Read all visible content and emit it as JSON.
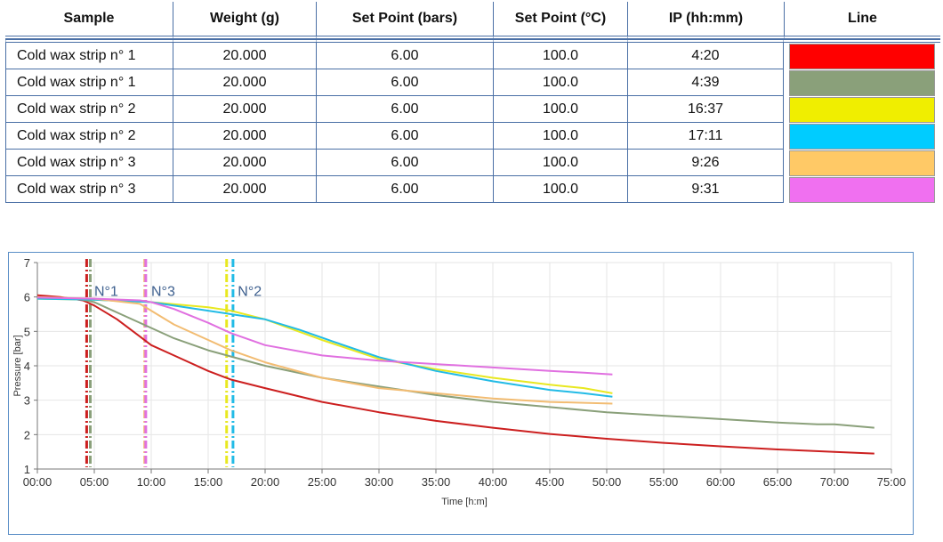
{
  "table": {
    "headers": [
      "Sample",
      "Weight (g)",
      "Set Point (bars)",
      "Set Point (°C)",
      "IP (hh:mm)",
      "Line"
    ],
    "rows": [
      {
        "sample": "Cold wax strip n° 1",
        "weight": "20.000",
        "sp_bars": "6.00",
        "sp_c": "100.0",
        "ip": "4:20",
        "color": "#ff0000"
      },
      {
        "sample": "Cold wax strip n° 1",
        "weight": "20.000",
        "sp_bars": "6.00",
        "sp_c": "100.0",
        "ip": "4:39",
        "color": "#8aa07a"
      },
      {
        "sample": "Cold wax strip n° 2",
        "weight": "20.000",
        "sp_bars": "6.00",
        "sp_c": "100.0",
        "ip": "16:37",
        "color": "#f0ee00"
      },
      {
        "sample": "Cold wax strip n° 2",
        "weight": "20.000",
        "sp_bars": "6.00",
        "sp_c": "100.0",
        "ip": "17:11",
        "color": "#00ccff"
      },
      {
        "sample": "Cold wax strip n° 3",
        "weight": "20.000",
        "sp_bars": "6.00",
        "sp_c": "100.0",
        "ip": "9:26",
        "color": "#ffc966"
      },
      {
        "sample": "Cold wax strip n° 3",
        "weight": "20.000",
        "sp_bars": "6.00",
        "sp_c": "100.0",
        "ip": "9:31",
        "color": "#f070f0"
      }
    ]
  },
  "chart_data": {
    "type": "line",
    "xlabel": "Time [h:m]",
    "ylabel": "Pressure [bar]",
    "xlim": [
      0,
      75
    ],
    "ylim": [
      1,
      7
    ],
    "xticks": [
      0,
      5,
      10,
      15,
      20,
      25,
      30,
      35,
      40,
      45,
      50,
      55,
      60,
      65,
      70,
      75
    ],
    "xtick_labels": [
      "00:00",
      "05:00",
      "10:00",
      "15:00",
      "20:00",
      "25:00",
      "30:00",
      "35:00",
      "40:00",
      "45:00",
      "50:00",
      "55:00",
      "60:00",
      "65:00",
      "70:00",
      "75:00"
    ],
    "yticks": [
      1,
      2,
      3,
      4,
      5,
      6,
      7
    ],
    "ytick_labels": [
      "1",
      "2",
      "3",
      "4",
      "5",
      "6",
      "7"
    ],
    "grid": true,
    "series": [
      {
        "name": "Cold wax strip n° 1 (4:20)",
        "color": "#cc1f1f",
        "x": [
          0,
          2,
          4,
          5,
          7,
          9,
          10,
          12,
          15,
          17,
          20,
          25,
          30,
          35,
          40,
          45,
          50,
          55,
          60,
          65,
          70,
          73.5
        ],
        "y": [
          6.05,
          6.0,
          5.9,
          5.75,
          5.35,
          4.85,
          4.6,
          4.3,
          3.85,
          3.6,
          3.35,
          2.95,
          2.65,
          2.4,
          2.2,
          2.02,
          1.88,
          1.76,
          1.66,
          1.57,
          1.5,
          1.45
        ]
      },
      {
        "name": "Cold wax strip n° 1 (4:39)",
        "color": "#8aa07a",
        "x": [
          0,
          2,
          4,
          5,
          7,
          10,
          12,
          15,
          20,
          25,
          30,
          35,
          40,
          45,
          50,
          55,
          60,
          65,
          68.5,
          70,
          73.5
        ],
        "y": [
          6.0,
          5.95,
          5.92,
          5.85,
          5.55,
          5.1,
          4.8,
          4.45,
          4.0,
          3.65,
          3.4,
          3.15,
          2.95,
          2.8,
          2.65,
          2.55,
          2.45,
          2.35,
          2.3,
          2.3,
          2.2
        ]
      },
      {
        "name": "Cold wax strip n° 2 (16:37)",
        "color": "#e8e820",
        "x": [
          0,
          5,
          10,
          15,
          17,
          20,
          25,
          30,
          35,
          40,
          45,
          48,
          50.5
        ],
        "y": [
          5.95,
          5.92,
          5.85,
          5.7,
          5.6,
          5.35,
          4.75,
          4.2,
          3.9,
          3.65,
          3.45,
          3.35,
          3.2
        ]
      },
      {
        "name": "Cold wax strip n° 2 (17:11)",
        "color": "#22bbe6",
        "x": [
          0,
          5,
          10,
          15,
          17,
          20,
          23,
          26,
          30,
          35,
          40,
          45,
          48,
          50.5
        ],
        "y": [
          5.95,
          5.92,
          5.85,
          5.6,
          5.5,
          5.35,
          5.05,
          4.7,
          4.25,
          3.85,
          3.55,
          3.3,
          3.2,
          3.1
        ]
      },
      {
        "name": "Cold wax strip n° 3 (9:26)",
        "color": "#f2bc72",
        "x": [
          0,
          5,
          9,
          10,
          12,
          15,
          17,
          20,
          25,
          30,
          35,
          40,
          45,
          50.5
        ],
        "y": [
          6.0,
          5.95,
          5.8,
          5.6,
          5.2,
          4.75,
          4.45,
          4.1,
          3.65,
          3.35,
          3.2,
          3.05,
          2.95,
          2.9
        ]
      },
      {
        "name": "Cold wax strip n° 3 (9:31)",
        "color": "#e070e0",
        "x": [
          0,
          5,
          9,
          10,
          12,
          15,
          17,
          20,
          25,
          30,
          35,
          40,
          45,
          48,
          50.5
        ],
        "y": [
          5.98,
          5.95,
          5.9,
          5.85,
          5.65,
          5.25,
          4.95,
          4.6,
          4.3,
          4.15,
          4.05,
          3.95,
          3.85,
          3.8,
          3.75
        ]
      }
    ],
    "markers": [
      {
        "x": 4.33,
        "color": "#cc1f1f"
      },
      {
        "x": 4.65,
        "color": "#8aa07a"
      },
      {
        "x": 9.43,
        "color": "#f2bc72"
      },
      {
        "x": 9.52,
        "color": "#e070e0"
      },
      {
        "x": 16.62,
        "color": "#e8e820"
      },
      {
        "x": 17.18,
        "color": "#22bbe6"
      }
    ],
    "annotations": [
      {
        "text": "N°1",
        "x": 5.0,
        "y": 6.18
      },
      {
        "text": "N°3",
        "x": 10.0,
        "y": 6.18
      },
      {
        "text": "N°2",
        "x": 17.6,
        "y": 6.18
      }
    ]
  }
}
